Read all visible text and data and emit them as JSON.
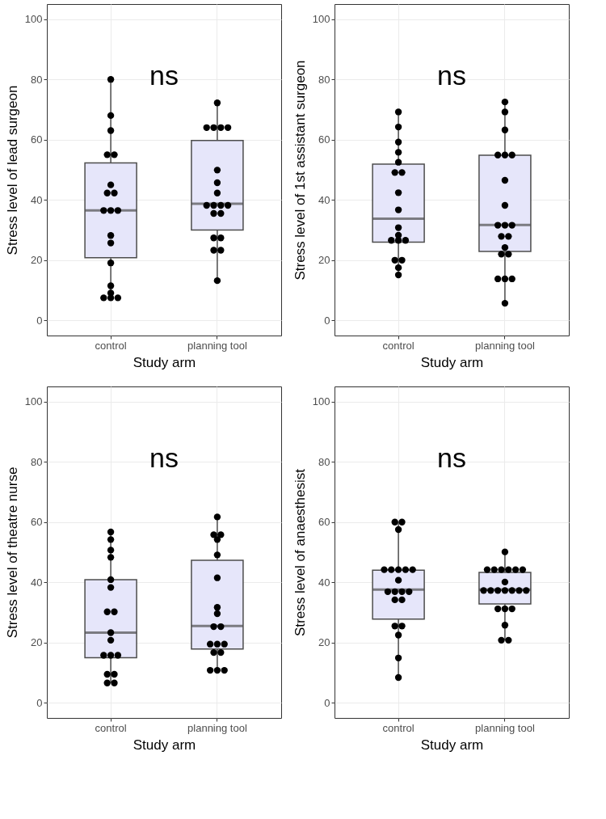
{
  "chart_data": [
    {
      "type": "box",
      "categories": [
        "control",
        "planning tool"
      ],
      "xlabel": "Study arm",
      "ylabel": "Stress level of lead surgeon",
      "ylim": [
        -5,
        105
      ],
      "yticks": [
        0,
        20,
        40,
        60,
        80,
        100
      ],
      "grid": true,
      "annotations": [
        "ns"
      ],
      "series": [
        {
          "type": "box",
          "color": "#e6e6fa",
          "boxes": [
            {
              "low": 7.5,
              "q1": 20.8,
              "median": 36.5,
              "q3": 52.3,
              "high": 80
            },
            {
              "low": 13.2,
              "q1": 30,
              "median": 38.7,
              "q3": 59.7,
              "high": 72.2
            }
          ]
        },
        {
          "type": "scatter",
          "color": "#000000",
          "marker": "circle",
          "x": [
            "control",
            "control",
            "control",
            "control",
            "control",
            "control",
            "control",
            "control",
            "control",
            "control",
            "control",
            "control",
            "control",
            "control",
            "control",
            "control",
            "control",
            "control",
            "control",
            "planning tool",
            "planning tool",
            "planning tool",
            "planning tool",
            "planning tool",
            "planning tool",
            "planning tool",
            "planning tool",
            "planning tool",
            "planning tool",
            "planning tool",
            "planning tool",
            "planning tool",
            "planning tool",
            "planning tool",
            "planning tool",
            "planning tool",
            "planning tool",
            "planning tool"
          ],
          "values": [
            80,
            68,
            63,
            55,
            55,
            45,
            42.3,
            42.3,
            36.5,
            36.5,
            36.5,
            28.2,
            25.7,
            19.1,
            11.5,
            9.1,
            7.5,
            7.5,
            7.5,
            72.2,
            64,
            64,
            64,
            64,
            49.9,
            45.7,
            42.3,
            38.2,
            38.2,
            38.2,
            38.2,
            35.5,
            35.5,
            27.4,
            27.4,
            23.3,
            23.3,
            13.2
          ]
        }
      ]
    },
    {
      "type": "box",
      "categories": [
        "control",
        "planning tool"
      ],
      "xlabel": "Study arm",
      "ylabel": "Stress level of 1st assistant surgeon",
      "ylim": [
        -5,
        105
      ],
      "yticks": [
        0,
        20,
        40,
        60,
        80,
        100
      ],
      "grid": true,
      "annotations": [
        "ns"
      ],
      "series": [
        {
          "type": "box",
          "color": "#e6e6fa",
          "boxes": [
            {
              "low": 15.1,
              "q1": 26,
              "median": 33.8,
              "q3": 51.9,
              "high": 69.2
            },
            {
              "low": 5.7,
              "q1": 22.9,
              "median": 31.7,
              "q3": 54.8,
              "high": 72.5
            }
          ]
        },
        {
          "type": "scatter",
          "color": "#000000",
          "marker": "circle",
          "x": [
            "control",
            "control",
            "control",
            "control",
            "control",
            "control",
            "control",
            "control",
            "control",
            "control",
            "control",
            "control",
            "control",
            "control",
            "control",
            "control",
            "control",
            "control",
            "planning tool",
            "planning tool",
            "planning tool",
            "planning tool",
            "planning tool",
            "planning tool",
            "planning tool",
            "planning tool",
            "planning tool",
            "planning tool",
            "planning tool",
            "planning tool",
            "planning tool",
            "planning tool",
            "planning tool",
            "planning tool",
            "planning tool",
            "planning tool",
            "planning tool",
            "planning tool"
          ],
          "values": [
            69.2,
            64.2,
            59.2,
            55.8,
            52.5,
            49.1,
            49.1,
            42.4,
            36.7,
            30.8,
            28.3,
            26.6,
            26.6,
            26.6,
            20,
            20,
            17.5,
            15.1,
            72.5,
            69.2,
            63.2,
            54.9,
            54.9,
            54.9,
            46.5,
            38.2,
            31.6,
            31.6,
            31.6,
            27.9,
            27.9,
            24.2,
            22,
            22,
            13.8,
            13.8,
            13.8,
            5.7
          ]
        }
      ]
    },
    {
      "type": "box",
      "categories": [
        "control",
        "planning tool"
      ],
      "xlabel": "Study arm",
      "ylabel": "Stress level of theatre nurse",
      "ylim": [
        -5,
        105
      ],
      "yticks": [
        0,
        20,
        40,
        60,
        80,
        100
      ],
      "grid": true,
      "annotations": [
        "ns"
      ],
      "series": [
        {
          "type": "box",
          "color": "#e6e6fa",
          "boxes": [
            {
              "low": 6.6,
              "q1": 15,
              "median": 23.3,
              "q3": 40.9,
              "high": 56.7
            },
            {
              "low": 10.8,
              "q1": 17.9,
              "median": 25.5,
              "q3": 47.3,
              "high": 61.7
            }
          ]
        },
        {
          "type": "scatter",
          "color": "#000000",
          "marker": "circle",
          "x": [
            "control",
            "control",
            "control",
            "control",
            "control",
            "control",
            "control",
            "control",
            "control",
            "control",
            "control",
            "control",
            "control",
            "control",
            "control",
            "control",
            "control",
            "planning tool",
            "planning tool",
            "planning tool",
            "planning tool",
            "planning tool",
            "planning tool",
            "planning tool",
            "planning tool",
            "planning tool",
            "planning tool",
            "planning tool",
            "planning tool",
            "planning tool",
            "planning tool",
            "planning tool",
            "planning tool",
            "planning tool",
            "planning tool"
          ],
          "values": [
            56.7,
            54.2,
            50.7,
            48.3,
            40.9,
            38.3,
            30.2,
            30.2,
            23.3,
            20.8,
            15.8,
            15.8,
            15.8,
            9.5,
            9.5,
            6.6,
            6.6,
            61.7,
            55.8,
            55.8,
            54.2,
            49.1,
            41.5,
            31.7,
            29.6,
            25.3,
            25.3,
            19.5,
            19.5,
            19.5,
            16.7,
            16.7,
            10.8,
            10.8,
            10.8
          ]
        }
      ]
    },
    {
      "type": "box",
      "categories": [
        "control",
        "planning tool"
      ],
      "xlabel": "Study arm",
      "ylabel": "Stress level of anaesthesist",
      "ylim": [
        -5,
        105
      ],
      "yticks": [
        0,
        20,
        40,
        60,
        80,
        100
      ],
      "grid": true,
      "annotations": [
        "ns"
      ],
      "series": [
        {
          "type": "box",
          "color": "#e6e6fa",
          "boxes": [
            {
              "low": 8.4,
              "q1": 27.8,
              "median": 37.6,
              "q3": 44,
              "high": 60
            },
            {
              "low": 20.8,
              "q1": 32.8,
              "median": 37.6,
              "q3": 43.3,
              "high": 50.1
            }
          ]
        },
        {
          "type": "scatter",
          "color": "#000000",
          "marker": "circle",
          "x": [
            "control",
            "control",
            "control",
            "control",
            "control",
            "control",
            "control",
            "control",
            "control",
            "control",
            "control",
            "control",
            "control",
            "control",
            "control",
            "control",
            "control",
            "control",
            "control",
            "control",
            "planning tool",
            "planning tool",
            "planning tool",
            "planning tool",
            "planning tool",
            "planning tool",
            "planning tool",
            "planning tool",
            "planning tool",
            "planning tool",
            "planning tool",
            "planning tool",
            "planning tool",
            "planning tool",
            "planning tool",
            "planning tool",
            "planning tool",
            "planning tool",
            "planning tool",
            "planning tool",
            "planning tool"
          ],
          "values": [
            60,
            60,
            57.5,
            44.2,
            44.2,
            44.2,
            44.2,
            44.2,
            40.7,
            36.9,
            36.9,
            36.9,
            36.9,
            34.2,
            34.2,
            25.5,
            25.5,
            22.5,
            14.9,
            8.4,
            50.1,
            44.2,
            44.2,
            44.2,
            44.2,
            44.2,
            44.2,
            40.1,
            37.3,
            37.3,
            37.3,
            37.3,
            37.3,
            37.3,
            37.3,
            31.2,
            31.2,
            31.2,
            25.8,
            20.8,
            20.8
          ]
        }
      ]
    }
  ]
}
